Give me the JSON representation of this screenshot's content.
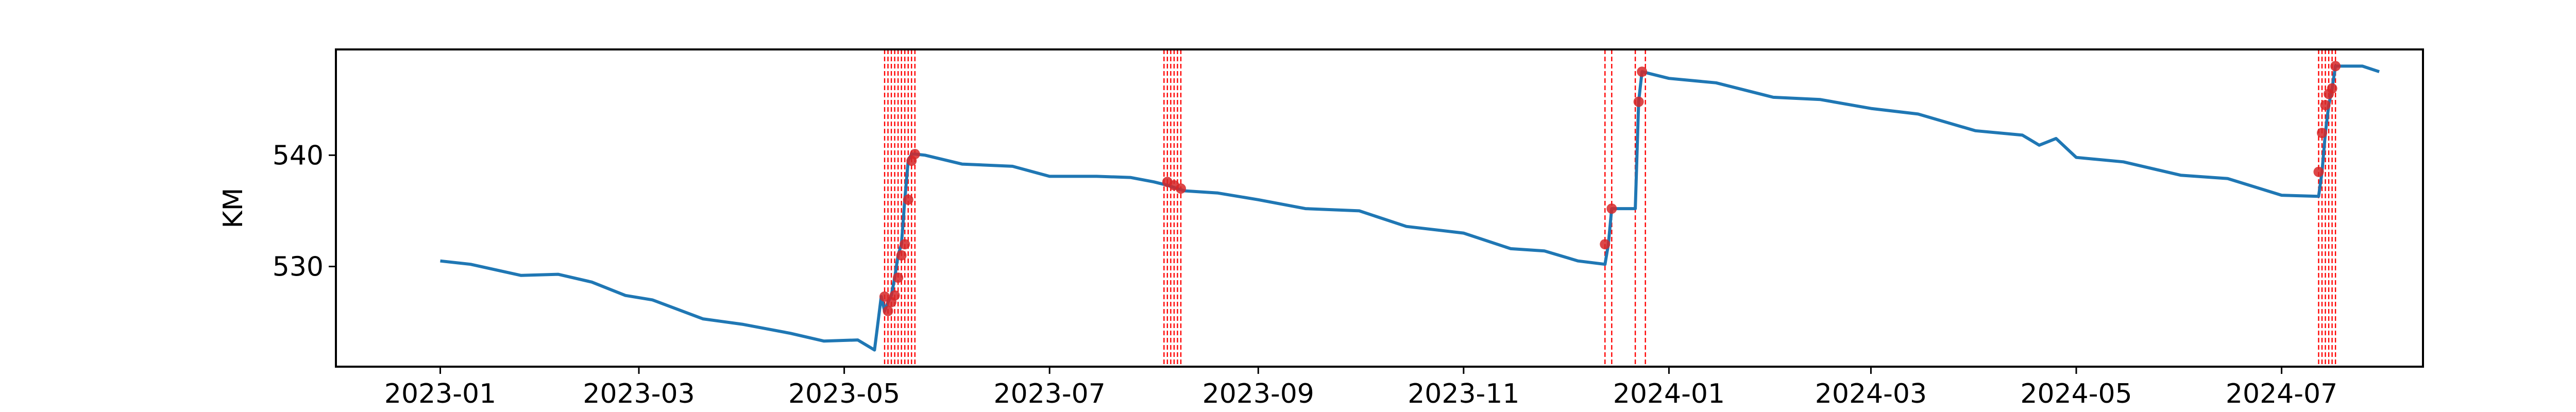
{
  "chart_data": {
    "type": "line",
    "title": "",
    "xlabel": "",
    "ylabel": "KM",
    "xlim": [
      "2022-12-01",
      "2024-08-12"
    ],
    "ylim": [
      521.0,
      549.5
    ],
    "xticks": [
      "2023-01",
      "2023-03",
      "2023-05",
      "2023-07",
      "2023-09",
      "2023-11",
      "2024-01",
      "2024-03",
      "2024-05",
      "2024-07"
    ],
    "yticks": [
      530,
      540
    ],
    "grid": false,
    "legend": "none",
    "colors": {
      "line": "#1f77b4",
      "markers": "#d62728",
      "event_lines": "#ff0000",
      "axes": "#000000"
    },
    "series": [
      {
        "x": [
          "2023-01-01",
          "2023-01-10",
          "2023-01-25",
          "2023-02-05",
          "2023-02-15",
          "2023-02-25",
          "2023-03-05",
          "2023-03-20",
          "2023-04-01",
          "2023-04-15",
          "2023-04-25",
          "2023-05-05",
          "2023-05-10",
          "2023-05-12",
          "2023-05-13",
          "2023-05-14",
          "2023-05-15",
          "2023-05-16",
          "2023-05-17",
          "2023-05-18",
          "2023-05-19",
          "2023-05-20",
          "2023-05-21",
          "2023-05-22",
          "2023-05-25",
          "2023-06-05",
          "2023-06-20",
          "2023-07-01",
          "2023-07-15",
          "2023-07-25",
          "2023-08-01",
          "2023-08-05",
          "2023-08-08",
          "2023-08-10",
          "2023-08-20",
          "2023-09-01",
          "2023-09-15",
          "2023-10-01",
          "2023-10-15",
          "2023-11-01",
          "2023-11-15",
          "2023-11-25",
          "2023-12-05",
          "2023-12-13",
          "2023-12-14",
          "2023-12-15",
          "2023-12-21",
          "2023-12-22",
          "2023-12-23",
          "2023-12-24",
          "2024-01-01",
          "2024-01-15",
          "2024-02-01",
          "2024-02-15",
          "2024-03-01",
          "2024-03-15",
          "2024-04-01",
          "2024-04-15",
          "2024-04-20",
          "2024-04-25",
          "2024-05-01",
          "2024-05-15",
          "2024-06-01",
          "2024-06-15",
          "2024-07-01",
          "2024-07-12",
          "2024-07-13",
          "2024-07-14",
          "2024-07-15",
          "2024-07-16",
          "2024-07-17",
          "2024-07-18",
          "2024-07-25",
          "2024-07-30"
        ],
        "y": [
          530.5,
          530.2,
          529.2,
          529.3,
          528.6,
          527.4,
          527.0,
          525.3,
          524.8,
          524.0,
          523.3,
          523.4,
          522.5,
          527.3,
          526.0,
          526.8,
          527.4,
          529.0,
          531.0,
          532.0,
          536.0,
          539.5,
          540.1,
          540.1,
          540.0,
          539.2,
          539.0,
          538.1,
          538.1,
          538.0,
          537.6,
          537.3,
          537.0,
          536.8,
          536.6,
          536.0,
          535.2,
          535.0,
          533.6,
          533.0,
          531.6,
          531.4,
          530.5,
          530.2,
          532.0,
          535.2,
          535.2,
          535.2,
          544.8,
          547.5,
          546.9,
          546.5,
          545.2,
          545.0,
          544.2,
          543.7,
          542.2,
          541.8,
          540.9,
          541.5,
          539.8,
          539.4,
          538.2,
          537.9,
          536.4,
          536.3,
          538.5,
          542.0,
          544.5,
          546.0,
          548.0,
          548.0,
          548.0,
          547.5
        ]
      }
    ],
    "markers": {
      "x": [
        "2023-05-13",
        "2023-05-14",
        "2023-05-15",
        "2023-05-16",
        "2023-05-17",
        "2023-05-18",
        "2023-05-19",
        "2023-05-20",
        "2023-05-21",
        "2023-05-22",
        "2023-08-05",
        "2023-08-07",
        "2023-08-09",
        "2023-12-13",
        "2023-12-15",
        "2023-12-23",
        "2023-12-24",
        "2024-07-12",
        "2024-07-13",
        "2024-07-14",
        "2024-07-15",
        "2024-07-16",
        "2024-07-17"
      ],
      "y": [
        527.3,
        526.0,
        526.8,
        527.4,
        529.0,
        531.0,
        532.0,
        536.0,
        539.5,
        540.1,
        537.6,
        537.3,
        537.0,
        532.0,
        535.2,
        544.8,
        547.5,
        538.5,
        542.0,
        544.5,
        545.5,
        546.0,
        548.0
      ]
    },
    "event_lines": [
      "2023-05-13",
      "2023-05-14",
      "2023-05-15",
      "2023-05-16",
      "2023-05-17",
      "2023-05-18",
      "2023-05-19",
      "2023-05-20",
      "2023-05-21",
      "2023-05-22",
      "2023-08-04",
      "2023-08-05",
      "2023-08-06",
      "2023-08-07",
      "2023-08-08",
      "2023-08-09",
      "2023-12-13",
      "2023-12-15",
      "2023-12-22",
      "2023-12-25",
      "2024-07-12",
      "2024-07-13",
      "2024-07-14",
      "2024-07-15",
      "2024-07-16",
      "2024-07-17"
    ]
  }
}
